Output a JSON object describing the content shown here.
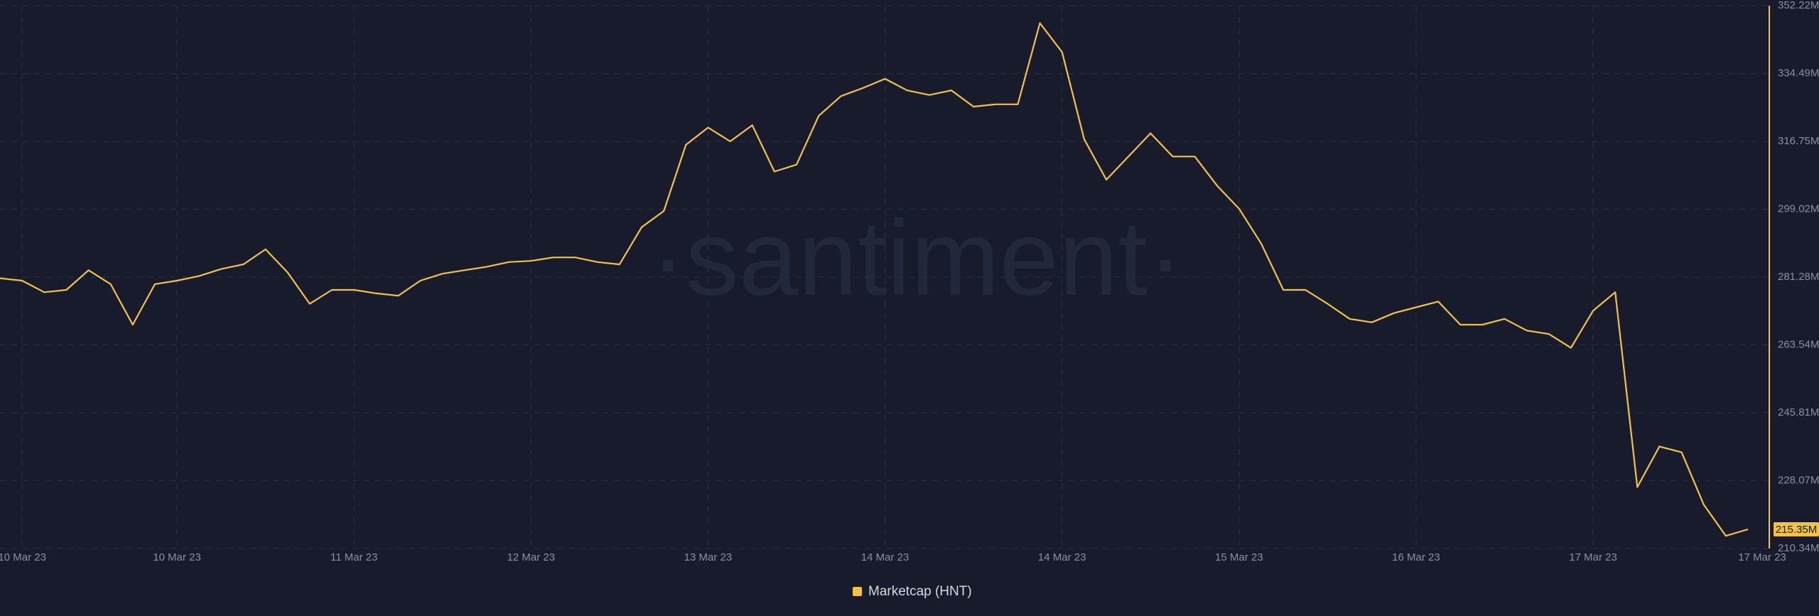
{
  "chart_data": {
    "type": "line",
    "watermark": "·santiment·",
    "categories": [
      null,
      "10 Mar 23",
      null,
      null,
      null,
      null,
      null,
      null,
      "10 Mar 23",
      null,
      null,
      null,
      null,
      null,
      null,
      null,
      "11 Mar 23",
      null,
      null,
      null,
      null,
      null,
      null,
      null,
      "12 Mar 23",
      null,
      null,
      null,
      null,
      null,
      null,
      null,
      "13 Mar 23",
      null,
      null,
      null,
      null,
      null,
      null,
      null,
      "14 Mar 23",
      null,
      null,
      null,
      null,
      null,
      null,
      null,
      "14 Mar 23",
      null,
      null,
      null,
      null,
      null,
      null,
      null,
      "15 Mar 23",
      null,
      null,
      null,
      null,
      null,
      null,
      null,
      "16 Mar 23",
      null,
      null,
      null,
      null,
      null,
      null,
      null,
      "17 Mar 23",
      null,
      null,
      null,
      null,
      null,
      null,
      "17 Mar 23"
    ],
    "series": [
      {
        "name": "Marketcap (HNT)",
        "color": "#f3c244",
        "values": [
          280.97,
          280.36,
          277.33,
          277.94,
          283.09,
          279.45,
          268.84,
          279.45,
          280.36,
          281.57,
          283.39,
          284.61,
          288.55,
          282.48,
          274.3,
          277.94,
          277.94,
          277.03,
          276.42,
          280.36,
          282.18,
          283.09,
          284.0,
          285.21,
          285.52,
          286.43,
          286.43,
          285.21,
          284.61,
          294.31,
          298.55,
          315.84,
          320.38,
          316.75,
          320.99,
          308.86,
          310.68,
          323.42,
          328.57,
          330.69,
          333.12,
          330.09,
          328.87,
          330.09,
          325.84,
          326.45,
          326.45,
          347.67,
          340.09,
          317.35,
          306.74,
          312.8,
          318.87,
          312.8,
          312.8,
          305.22,
          299.16,
          290.06,
          277.94,
          277.94,
          274.3,
          270.36,
          269.45,
          271.87,
          273.39,
          274.9,
          268.84,
          268.84,
          270.36,
          267.32,
          266.41,
          262.78,
          272.48,
          277.33,
          226.39,
          237.0,
          235.49,
          221.84,
          213.65,
          215.35
        ],
        "value_labels": [
          null,
          null,
          null,
          null,
          null,
          null,
          null,
          null,
          null,
          null,
          null,
          null,
          null,
          null,
          null,
          null,
          null,
          null,
          null,
          null,
          null,
          null,
          null,
          null,
          null,
          null,
          null,
          null,
          null,
          null,
          null,
          null,
          null,
          null,
          null,
          null,
          null,
          null,
          null,
          null,
          null,
          null,
          null,
          null,
          null,
          null,
          null,
          null,
          null,
          null,
          null,
          null,
          null,
          null,
          null,
          null,
          null,
          null,
          null,
          null,
          null,
          null,
          null,
          null,
          null,
          null,
          null,
          null,
          null,
          null,
          null,
          null,
          null,
          null,
          null,
          null,
          null,
          null,
          null,
          "215.35M"
        ]
      }
    ],
    "ylim": [
      210.34,
      352.22
    ],
    "yticks": [
      {
        "value": 210.34,
        "label": "210.34M"
      },
      {
        "value": 228.07,
        "label": "228.07M"
      },
      {
        "value": 245.81,
        "label": "245.81M"
      },
      {
        "value": 263.54,
        "label": "263.54M"
      },
      {
        "value": 281.28,
        "label": "281.28M"
      },
      {
        "value": 299.02,
        "label": "299.02M"
      },
      {
        "value": 316.75,
        "label": "316.75M"
      },
      {
        "value": 334.49,
        "label": "334.49M"
      },
      {
        "value": 352.22,
        "label": "352.22M"
      }
    ],
    "grid": true,
    "legend": "bottom"
  }
}
